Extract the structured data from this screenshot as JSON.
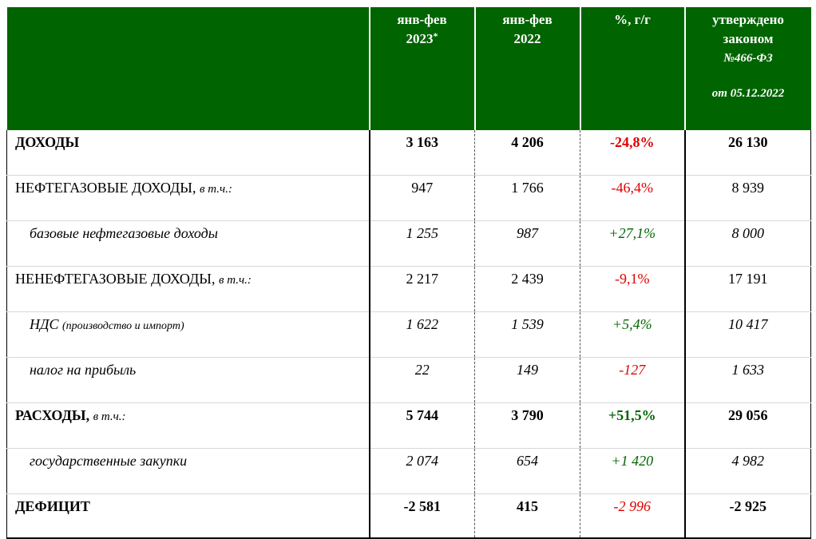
{
  "header": {
    "col1_line1": "янв-фев",
    "col1_line2": "2023",
    "col1_star": "*",
    "col2_line1": "янв-фев",
    "col2_line2": "2022",
    "col3": "%, г/г",
    "col4_line1": "утверждено",
    "col4_line2": "законом",
    "col4_line3": "№466-ФЗ",
    "col4_line4": "от 05.12.2022"
  },
  "rows": [
    {
      "label": "ДОХОДЫ",
      "note": "",
      "v2023": "3 163",
      "v2022": "4 206",
      "pct": "-24,8%",
      "law": "26 130"
    },
    {
      "label": "НЕФТЕГАЗОВЫЕ ДОХОДЫ,",
      "note": "в т.ч.:",
      "v2023": "947",
      "v2022": "1 766",
      "pct": "-46,4%",
      "law": "8 939"
    },
    {
      "label": "базовые нефтегазовые доходы",
      "note": "",
      "v2023": "1 255",
      "v2022": "987",
      "pct": "+27,1%",
      "law": "8 000"
    },
    {
      "label": "НЕНЕФТЕГАЗОВЫЕ ДОХОДЫ,",
      "note": "в т.ч.:",
      "v2023": "2 217",
      "v2022": "2 439",
      "pct": "-9,1%",
      "law": "17 191"
    },
    {
      "label": "НДС",
      "note": "(производство и импорт)",
      "v2023": "1 622",
      "v2022": "1 539",
      "pct": "+5,4%",
      "law": "10 417"
    },
    {
      "label": "налог на прибыль",
      "note": "",
      "v2023": "22",
      "v2022": "149",
      "pct": "-127",
      "law": "1 633"
    },
    {
      "label": "РАСХОДЫ,",
      "note": "в т.ч.:",
      "v2023": "5 744",
      "v2022": "3 790",
      "pct": "+51,5%",
      "law": "29 056"
    },
    {
      "label": "государственные закупки",
      "note": "",
      "v2023": "2 074",
      "v2022": "654",
      "pct": "+1 420",
      "law": "4 982"
    },
    {
      "label": "ДЕФИЦИТ",
      "note": "",
      "v2023": "-2 581",
      "v2022": "415",
      "pct": "-2 996",
      "law": "-2 925"
    }
  ],
  "colors": {
    "header_bg": "#006400",
    "negative": "#e00000",
    "positive": "#006400"
  }
}
